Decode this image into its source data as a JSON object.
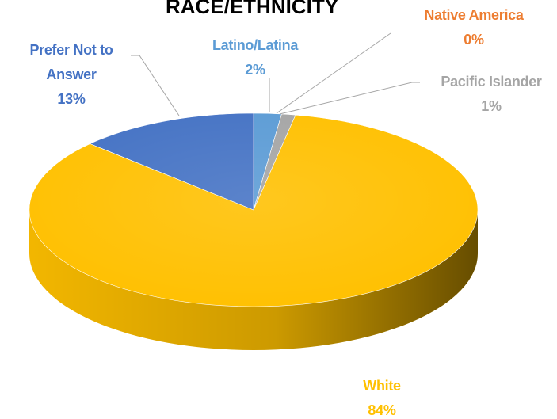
{
  "chart_data": {
    "type": "pie3d",
    "title": "RACE/ETHNICITY",
    "categories": [
      "Latino/Latina",
      "Native America",
      "Pacific Islander",
      "White",
      "Prefer Not to Answer"
    ],
    "values": [
      2,
      0,
      1,
      84,
      13
    ],
    "value_labels": [
      "2%",
      "0%",
      "1%",
      "84%",
      "13%"
    ],
    "colors": [
      "#5b9bd5",
      "#ed7d31",
      "#a5a5a5",
      "#ffc000",
      "#4472c4"
    ]
  }
}
